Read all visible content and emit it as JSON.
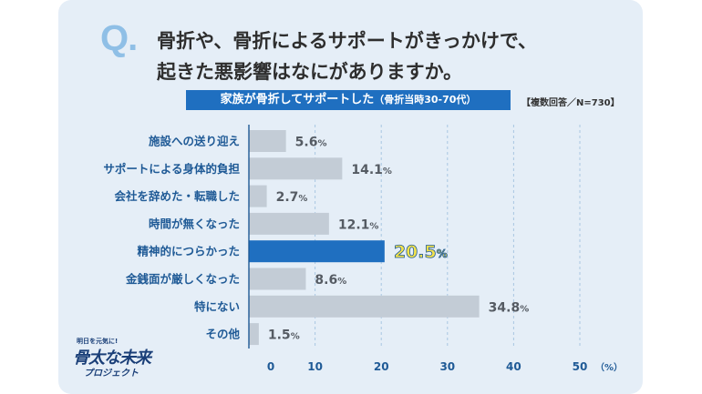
{
  "question": {
    "mark": "Q.",
    "line1": "骨折や、骨折によるサポートがきっかけで、",
    "line2": "起きた悪影響はなにがありますか。"
  },
  "banner": {
    "main": "家族が骨折してサポートした",
    "sub": "（骨折当時30-70代）"
  },
  "note": "【複数回答／N=730】",
  "logo": {
    "top": "明日を元気に!",
    "main": "骨太な未来",
    "sub": "プロジェクト"
  },
  "colors": {
    "bar": "#c3ccd6",
    "highlight": "#1f6fc0",
    "text": "#1f5a96"
  },
  "chart_data": {
    "type": "bar",
    "orientation": "horizontal",
    "categories": [
      "施設への送り迎え",
      "サポートによる身体的負担",
      "会社を辞めた・転職した",
      "時間が無くなった",
      "精神的につらかった",
      "金銭面が厳しくなった",
      "特にない",
      "その他"
    ],
    "values": [
      5.6,
      14.1,
      2.7,
      12.1,
      20.5,
      8.6,
      34.8,
      1.5
    ],
    "highlight_index": 4,
    "xlim": [
      0,
      50
    ],
    "xticks": [
      0,
      10,
      20,
      30,
      40,
      50
    ],
    "unit_label": "（%）",
    "value_suffix": "%",
    "grid": true
  }
}
